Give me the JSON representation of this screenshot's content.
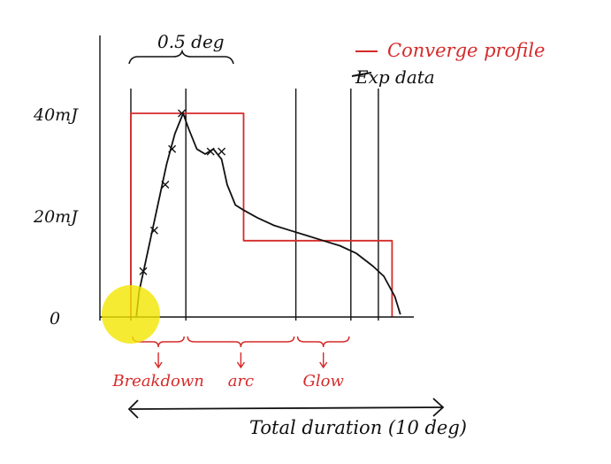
{
  "chart_data": {
    "type": "line",
    "title": "",
    "xlabel": "Total duration (10 deg)",
    "ylabel": "",
    "xlim": [
      -0.5,
      10.5
    ],
    "ylim": [
      0,
      50
    ],
    "y_ticks": [
      {
        "value": 0,
        "label": "0"
      },
      {
        "value": 20,
        "label": "20mJ"
      },
      {
        "value": 40,
        "label": "40mJ"
      }
    ],
    "top_span_label": "0.5 deg",
    "legend": [
      {
        "label": "Converge profile",
        "color": "#d62a2a"
      },
      {
        "label": "Exp data",
        "color": "#111111"
      }
    ],
    "series": [
      {
        "name": "Converge profile",
        "color": "#d62a2a",
        "x": [
          0,
          0,
          4.1,
          4.1,
          9.5,
          9.5
        ],
        "y": [
          0,
          40,
          40,
          15,
          15,
          0
        ]
      },
      {
        "name": "Exp data",
        "color": "#111111",
        "x": [
          0.2,
          0.3,
          0.5,
          0.9,
          1.3,
          1.6,
          1.9,
          2.1,
          2.4,
          2.7,
          3.0,
          3.3,
          3.5,
          3.8,
          4.1,
          4.6,
          5.2,
          5.8,
          6.4,
          7.0,
          7.6,
          8.2,
          8.8,
          9.2,
          9.6,
          9.8
        ],
        "y": [
          0,
          5,
          10,
          20,
          30,
          36,
          40,
          37,
          33,
          32,
          33,
          31,
          26,
          22,
          21,
          19.5,
          18,
          17,
          16,
          15,
          14,
          12.5,
          10,
          8,
          4,
          0.5
        ]
      }
    ],
    "markers_x": [
      0.45,
      0.85,
      1.25,
      1.5,
      1.85,
      2.9,
      3.3
    ],
    "markers_y": [
      9,
      17,
      26,
      33,
      40,
      32.5,
      32.5
    ],
    "regions": [
      {
        "label": "Breakdown",
        "from": 0,
        "to": 2
      },
      {
        "label": "arc",
        "from": 2,
        "to": 6
      },
      {
        "label": "Glow",
        "from": 6,
        "to": 8
      }
    ],
    "vertical_lines_x": [
      0,
      2,
      6,
      8,
      9
    ]
  },
  "colors": {
    "ink": "#111111",
    "red": "#d62a2a",
    "highlight": "#f3e600"
  }
}
